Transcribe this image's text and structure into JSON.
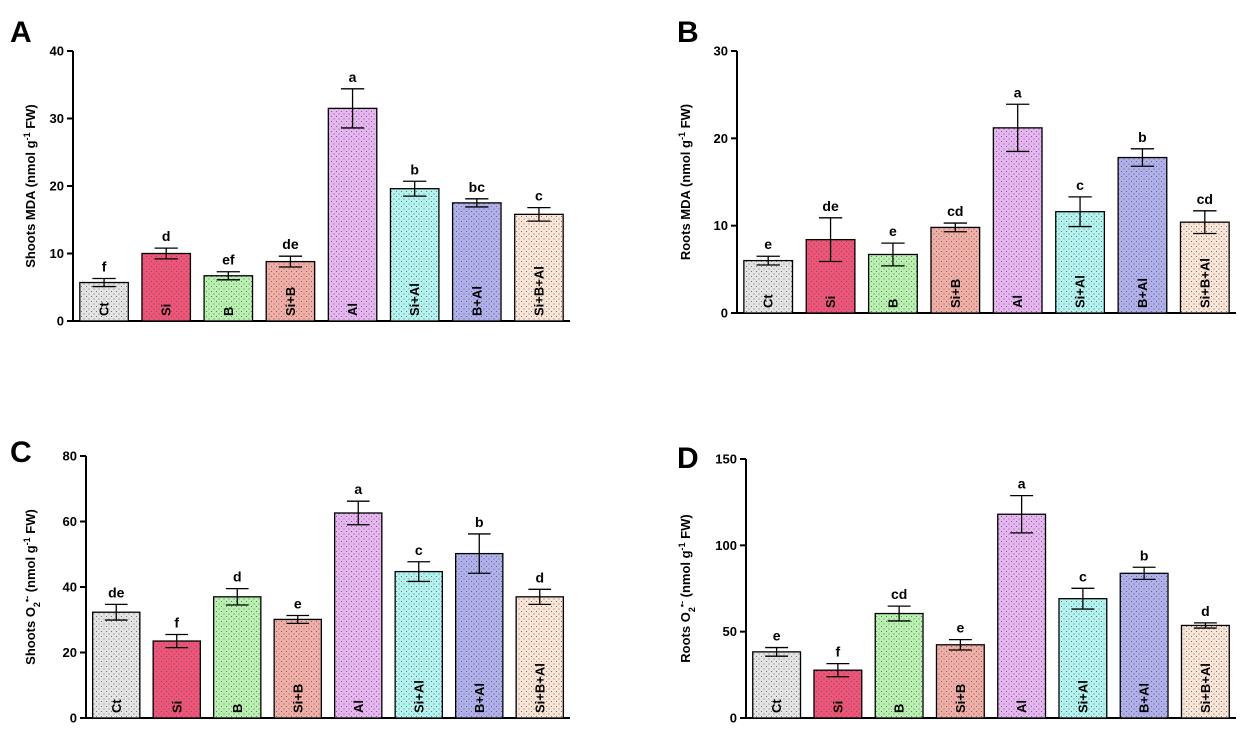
{
  "chart_data": [
    {
      "type": "bar",
      "panel": "A",
      "ylabel": "Shoots MDA (nmol g⁻¹ FW)",
      "ylabel_parts": [
        "Shoots MDA (nmol g",
        "-1",
        " FW)"
      ],
      "ylim": [
        0,
        40
      ],
      "yticks": [
        0,
        10,
        20,
        30,
        40
      ],
      "categories": [
        "Ct",
        "Si",
        "B",
        "Si+B",
        "Al",
        "Si+Al",
        "B+Al",
        "Si+B+Al"
      ],
      "values": [
        5.7,
        10.0,
        6.7,
        8.8,
        31.5,
        19.6,
        17.5,
        15.8
      ],
      "errors": [
        0.6,
        0.8,
        0.6,
        0.8,
        2.9,
        1.1,
        0.6,
        1.0
      ],
      "significance": [
        "f",
        "d",
        "ef",
        "de",
        "a",
        "b",
        "bc",
        "c"
      ]
    },
    {
      "type": "bar",
      "panel": "B",
      "ylabel": "Roots MDA (nmol g⁻¹ FW)",
      "ylabel_parts": [
        "Roots MDA (nmol g",
        "-1",
        " FW)"
      ],
      "ylim": [
        0,
        30
      ],
      "yticks": [
        0,
        10,
        20,
        30
      ],
      "categories": [
        "Ct",
        "Si",
        "B",
        "Si+B",
        "Al",
        "Si+Al",
        "B+Al",
        "Si+B+Al"
      ],
      "values": [
        6.0,
        8.4,
        6.7,
        9.8,
        21.2,
        11.6,
        17.8,
        10.4
      ],
      "errors": [
        0.5,
        2.5,
        1.3,
        0.5,
        2.7,
        1.7,
        1.0,
        1.3
      ],
      "significance": [
        "e",
        "de",
        "e",
        "cd",
        "a",
        "c",
        "b",
        "cd"
      ]
    },
    {
      "type": "bar",
      "panel": "C",
      "ylabel": "Shoots O₂•⁻ (nmol g⁻¹ FW)",
      "ylabel_parts": [
        "Shoots O",
        "2",
        "•-",
        " (nmol g",
        "-1",
        " FW)"
      ],
      "ylim": [
        0,
        80
      ],
      "yticks": [
        0,
        20,
        40,
        60,
        80
      ],
      "categories": [
        "Ct",
        "Si",
        "B",
        "Si+B",
        "Al",
        "Si+Al",
        "B+Al",
        "Si+B+Al"
      ],
      "values": [
        32.3,
        23.5,
        37.0,
        30.1,
        62.6,
        44.7,
        50.2,
        37.0
      ],
      "errors": [
        2.4,
        2.0,
        2.5,
        1.2,
        3.6,
        3.0,
        6.0,
        2.3
      ],
      "significance": [
        "de",
        "f",
        "d",
        "e",
        "a",
        "c",
        "b",
        "d"
      ]
    },
    {
      "type": "bar",
      "panel": "D",
      "ylabel": "Roots O₂•⁻ (nmol g⁻¹ FW)",
      "ylabel_parts": [
        "Roots O",
        "2",
        "•-",
        " (nmol g",
        "-1",
        " FW)"
      ],
      "ylim": [
        0,
        150
      ],
      "yticks": [
        0,
        50,
        100,
        150
      ],
      "categories": [
        "Ct",
        "Si",
        "B",
        "Si+B",
        "Al",
        "Si+Al",
        "B+Al",
        "Si+B+Al"
      ],
      "values": [
        38.3,
        27.7,
        60.5,
        42.4,
        118.0,
        69.1,
        83.8,
        53.6
      ],
      "errors": [
        2.5,
        3.8,
        4.3,
        3.0,
        10.8,
        6.0,
        3.5,
        1.5
      ],
      "significance": [
        "e",
        "f",
        "cd",
        "e",
        "a",
        "c",
        "b",
        "d"
      ]
    }
  ],
  "colors": {
    "fills": [
      "#e4e4e4",
      "#ef5479",
      "#b8f1b0",
      "#f1aea6",
      "#e7b5f1",
      "#b3f4f1",
      "#b0b1ec",
      "#fbe5d6"
    ],
    "axis": "#000000",
    "dots": "#555555"
  }
}
